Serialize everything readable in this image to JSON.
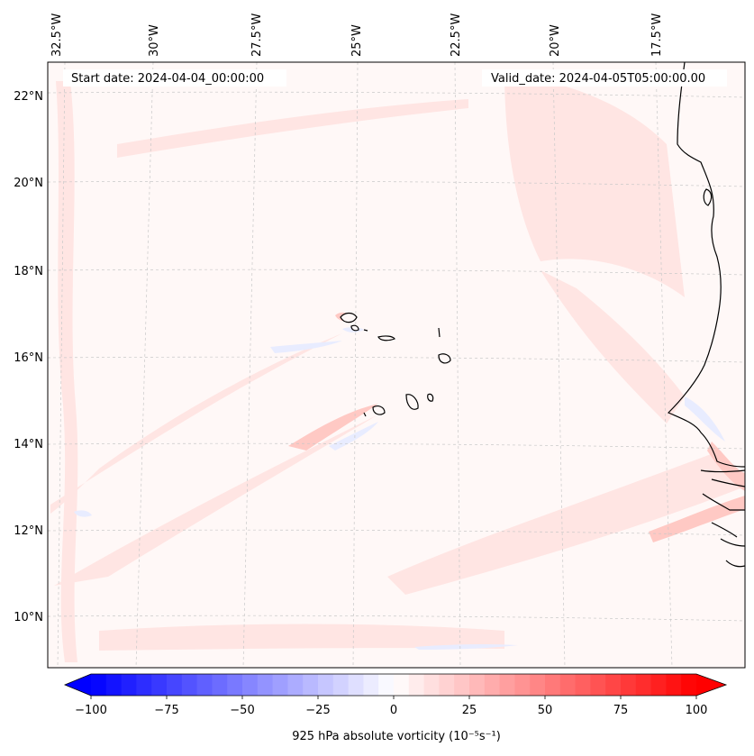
{
  "map": {
    "header": {
      "start_date": "Start date: 2024-04-04_00:00:00",
      "valid_date": "Valid_date: 2024-04-05T05:00:00.00"
    },
    "lon_labels": [
      "32.5°W",
      "30°W",
      "27.5°W",
      "25°W",
      "22.5°W",
      "20°W",
      "17.5°W"
    ],
    "lat_labels": [
      "22°N",
      "20°N",
      "18°N",
      "16°N",
      "14°N",
      "12°N",
      "10°N"
    ],
    "colorbar": {
      "ticks": [
        "−100",
        "−75",
        "−50",
        "−25",
        "0",
        "25",
        "50",
        "75",
        "100"
      ],
      "label": "925 hPa absolute vorticity (10⁻⁵s⁻¹)",
      "vmin": -100,
      "vmax": 100,
      "step": 5,
      "low_color": "#0000ff",
      "high_color": "#ff0000"
    }
  }
}
